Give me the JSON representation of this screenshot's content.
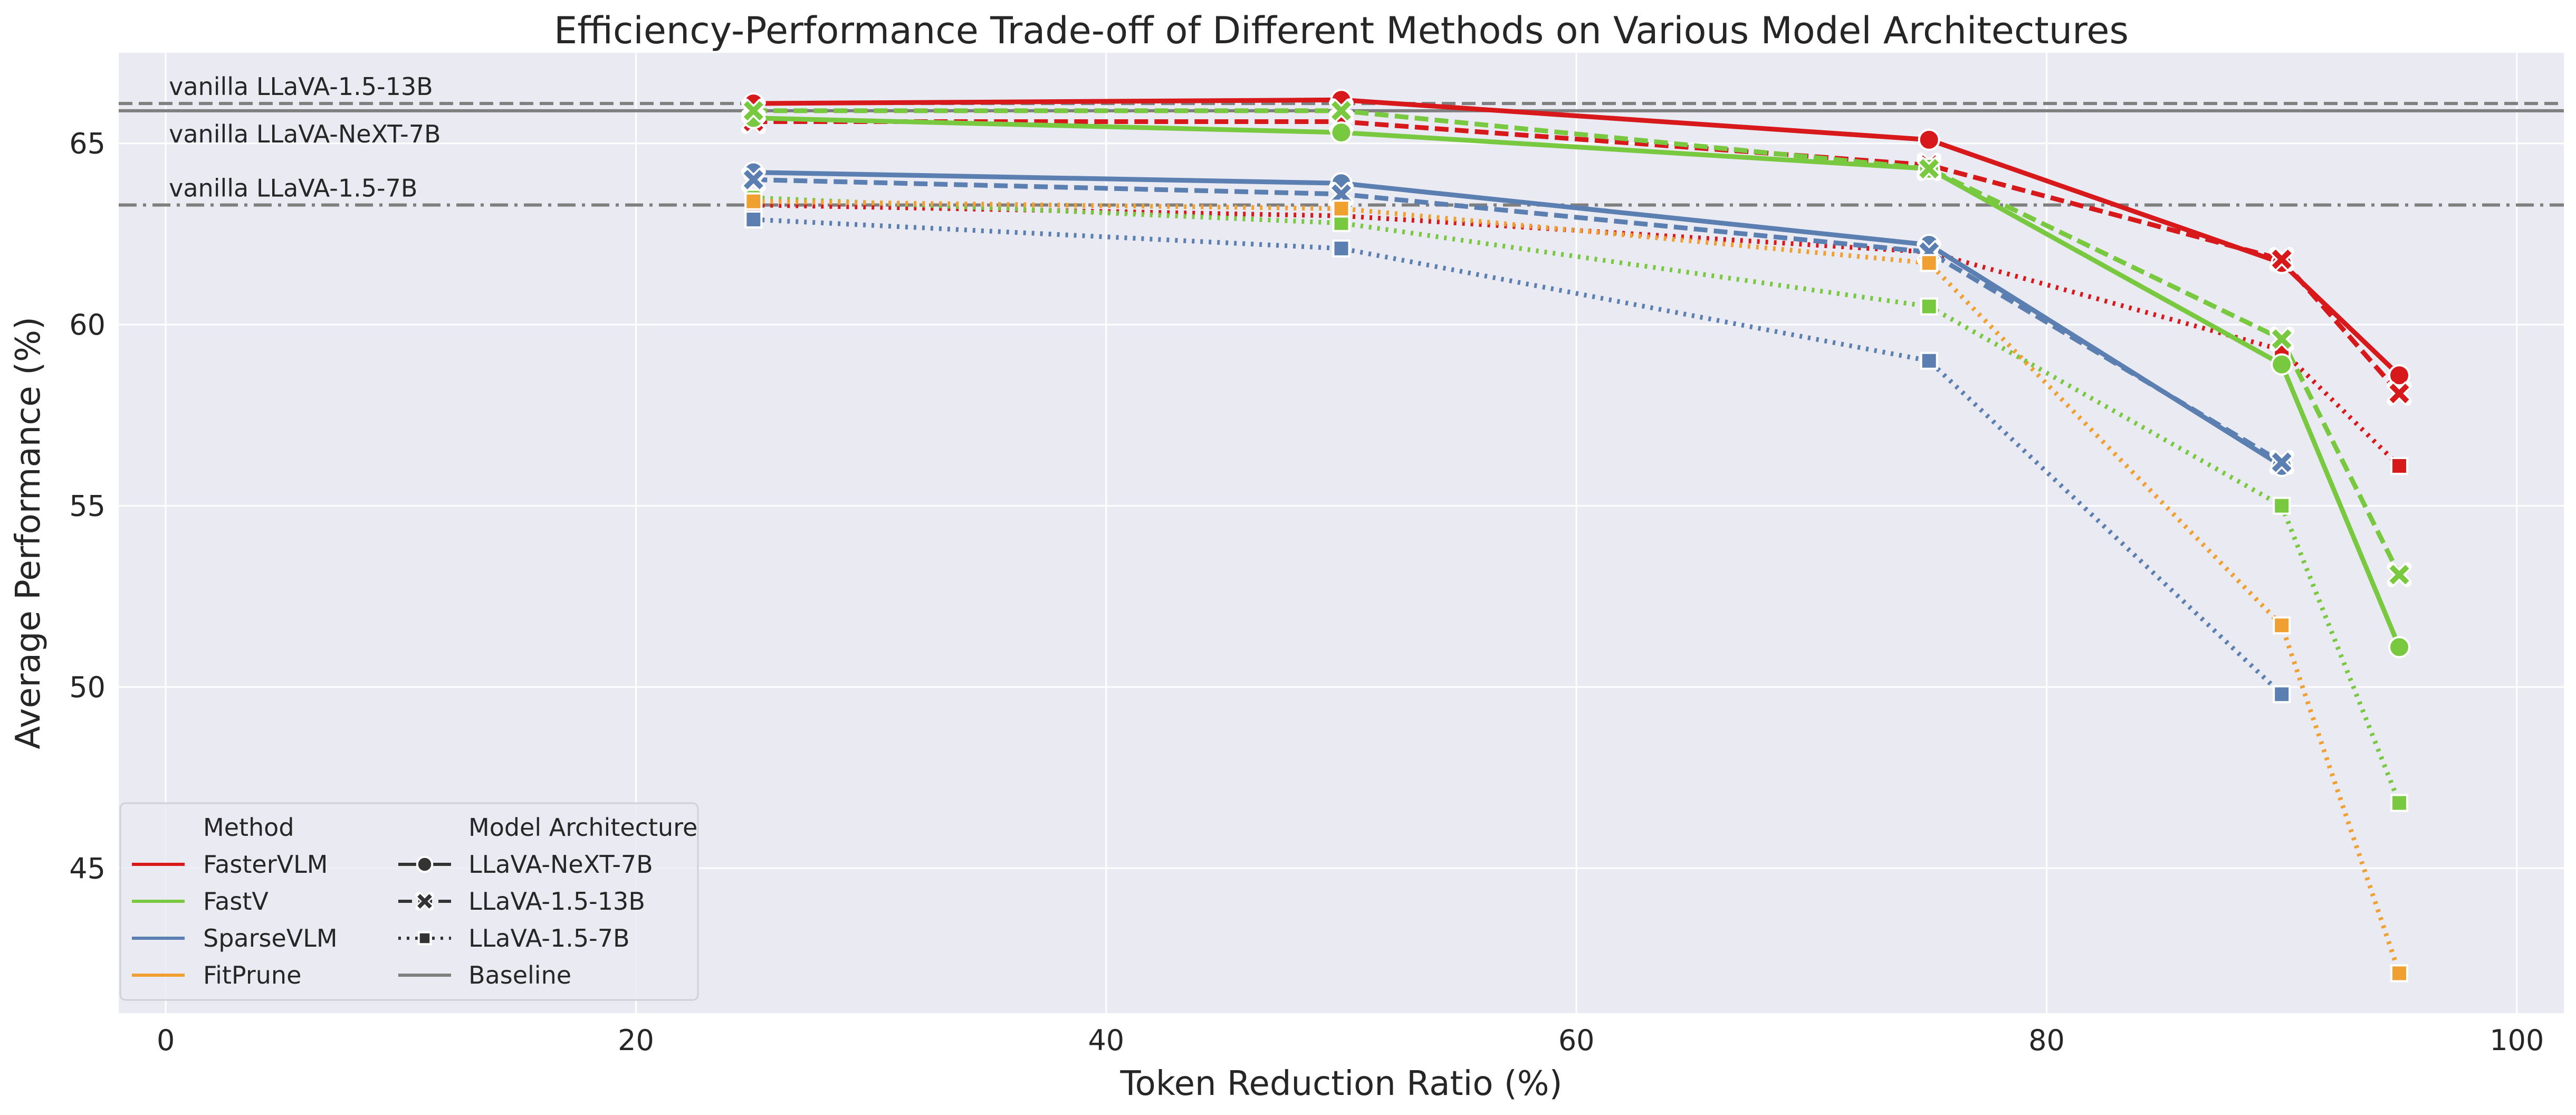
{
  "chart_data": {
    "type": "line",
    "title": "Efficiency-Performance Trade-off of Different Methods on Various Model Architectures",
    "xlabel": "Token Reduction Ratio (%)",
    "ylabel": "Average Performance (%)",
    "xlim": [
      -2,
      102
    ],
    "ylim": [
      41,
      67.5
    ],
    "xticks": [
      0,
      20,
      40,
      60,
      80,
      100
    ],
    "yticks": [
      45,
      50,
      55,
      60,
      65
    ],
    "grid": true,
    "legend_position": "lower-left",
    "colors": {
      "FasterVLM": "#d7191c",
      "FastV": "#78c840",
      "SparseVLM": "#5b7fb0",
      "FitPrune": "#f0a030",
      "Baseline": "#7f7f7f"
    },
    "baselines": [
      {
        "label": "vanilla LLaVA-1.5-13B",
        "y": 66.1,
        "style": "dashed"
      },
      {
        "label": "vanilla LLaVA-NeXT-7B",
        "y": 65.9,
        "style": "solid"
      },
      {
        "label": "vanilla LLaVA-1.5-7B",
        "y": 63.3,
        "style": "dashdot"
      }
    ],
    "series": [
      {
        "method": "FasterVLM",
        "arch": "LLaVA-NeXT-7B",
        "x": [
          25,
          50,
          75,
          90,
          95
        ],
        "y": [
          66.1,
          66.2,
          65.1,
          61.7,
          58.6
        ]
      },
      {
        "method": "FasterVLM",
        "arch": "LLaVA-1.5-13B",
        "x": [
          25,
          50,
          75,
          90,
          95
        ],
        "y": [
          65.6,
          65.6,
          64.4,
          61.8,
          58.1
        ]
      },
      {
        "method": "FasterVLM",
        "arch": "LLaVA-1.5-7B",
        "x": [
          25,
          50,
          75,
          90,
          95
        ],
        "y": [
          63.3,
          63.0,
          62.0,
          59.3,
          56.1
        ]
      },
      {
        "method": "FastV",
        "arch": "LLaVA-NeXT-7B",
        "x": [
          25,
          50,
          75,
          90,
          95
        ],
        "y": [
          65.7,
          65.3,
          64.3,
          58.9,
          51.1
        ]
      },
      {
        "method": "FastV",
        "arch": "LLaVA-1.5-13B",
        "x": [
          25,
          50,
          75,
          90,
          95
        ],
        "y": [
          65.9,
          65.9,
          64.3,
          59.6,
          53.1
        ]
      },
      {
        "method": "FastV",
        "arch": "LLaVA-1.5-7B",
        "x": [
          25,
          50,
          75,
          90,
          95
        ],
        "y": [
          63.5,
          62.8,
          60.5,
          55.0,
          46.8
        ]
      },
      {
        "method": "SparseVLM",
        "arch": "LLaVA-NeXT-7B",
        "x": [
          25,
          50,
          75,
          90
        ],
        "y": [
          64.2,
          63.9,
          62.2,
          56.1
        ]
      },
      {
        "method": "SparseVLM",
        "arch": "LLaVA-1.5-13B",
        "x": [
          25,
          50,
          75,
          90
        ],
        "y": [
          64.0,
          63.6,
          62.0,
          56.2
        ]
      },
      {
        "method": "SparseVLM",
        "arch": "LLaVA-1.5-7B",
        "x": [
          25,
          50,
          75,
          90
        ],
        "y": [
          62.9,
          62.1,
          59.0,
          49.8
        ]
      },
      {
        "method": "FitPrune",
        "arch": "LLaVA-1.5-7B",
        "x": [
          25,
          50,
          75,
          90,
          95
        ],
        "y": [
          63.4,
          63.2,
          61.7,
          51.7,
          42.1
        ]
      }
    ],
    "legend": {
      "method_title": "Method",
      "methods": [
        "FasterVLM",
        "FastV",
        "SparseVLM",
        "FitPrune"
      ],
      "arch_title": "Model Architecture",
      "archs": [
        "LLaVA-NeXT-7B",
        "LLaVA-1.5-13B",
        "LLaVA-1.5-7B",
        "Baseline"
      ]
    }
  }
}
